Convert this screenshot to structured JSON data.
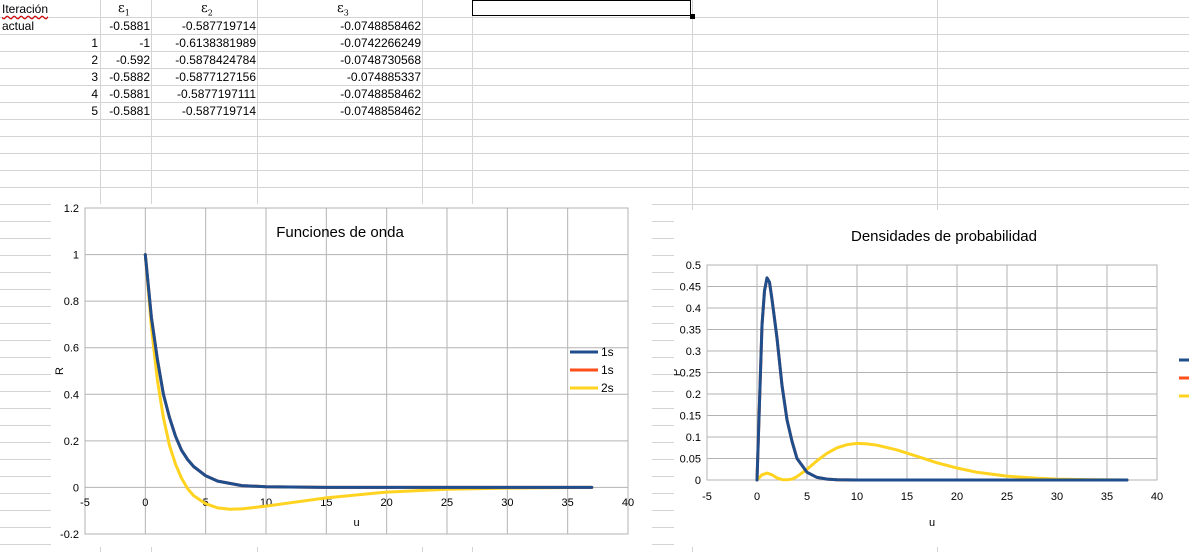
{
  "sheet": {
    "header_label_1": "Iteración",
    "header_label_2": "actual",
    "col_headers": [
      {
        "sym": "ε",
        "sub": "1"
      },
      {
        "sym": "ε",
        "sub": "2"
      },
      {
        "sym": "ε",
        "sub": "3"
      }
    ],
    "initial_row": [
      "-0.5881",
      "-0.587719714",
      "-0.0748858462"
    ],
    "rows": [
      {
        "iter": "1",
        "e1": "-1",
        "e2": "-0.6138381989",
        "e3": "-0.0742266249"
      },
      {
        "iter": "2",
        "e1": "-0.592",
        "e2": "-0.5878424784",
        "e3": "-0.0748730568"
      },
      {
        "iter": "3",
        "e1": "-0.5882",
        "e2": "-0.5877127156",
        "e3": "-0.074885337"
      },
      {
        "iter": "4",
        "e1": "-0.5881",
        "e2": "-0.5877197111",
        "e3": "-0.0748858462"
      },
      {
        "iter": "5",
        "e1": "-0.5881",
        "e2": "-0.587719714",
        "e3": "-0.0748858462"
      }
    ]
  },
  "chart_data": [
    {
      "type": "line",
      "title": "Funciones de onda",
      "xlabel": "u",
      "ylabel": "R",
      "xlim": [
        -5,
        40
      ],
      "ylim": [
        -0.2,
        1.2
      ],
      "xticks": [
        "-5",
        "0",
        "5",
        "10",
        "15",
        "20",
        "25",
        "30",
        "35",
        "40"
      ],
      "yticks": [
        "-0.2",
        "0",
        "0.2",
        "0.4",
        "0.6",
        "0.8",
        "1",
        "1.2"
      ],
      "grid": true,
      "legend": "right",
      "series": [
        {
          "name": "1s",
          "color": "#1f4e8c",
          "x": [
            0,
            0.5,
            1,
            1.5,
            2,
            2.5,
            3,
            3.5,
            4,
            5,
            6,
            8,
            10,
            15,
            20,
            25,
            30,
            37
          ],
          "y": [
            1,
            0.73,
            0.55,
            0.4,
            0.3,
            0.22,
            0.16,
            0.12,
            0.09,
            0.05,
            0.027,
            0.008,
            0.003,
            0.0003,
            0,
            0,
            0,
            0
          ]
        },
        {
          "name": "1s",
          "color": "#ff4f1a",
          "x": [
            0,
            0.5,
            1,
            1.5,
            2,
            2.5,
            3,
            3.5,
            4,
            5,
            6,
            8,
            10,
            15,
            20,
            25,
            30,
            37
          ],
          "y": [
            1,
            0.73,
            0.55,
            0.4,
            0.3,
            0.22,
            0.16,
            0.12,
            0.09,
            0.05,
            0.027,
            0.008,
            0.003,
            0.0003,
            0,
            0,
            0,
            0
          ]
        },
        {
          "name": "2s",
          "color": "#ffd320",
          "x": [
            0,
            0.5,
            1,
            1.5,
            2,
            2.5,
            3,
            3.5,
            4,
            5,
            6,
            7,
            8,
            10,
            12,
            15,
            20,
            25,
            30,
            37
          ],
          "y": [
            1,
            0.69,
            0.46,
            0.3,
            0.18,
            0.1,
            0.04,
            -0.005,
            -0.035,
            -0.07,
            -0.088,
            -0.094,
            -0.092,
            -0.08,
            -0.066,
            -0.045,
            -0.02,
            -0.008,
            -0.003,
            0
          ]
        }
      ]
    },
    {
      "type": "line",
      "title": "Densidades de probabilidad",
      "xlabel": "u",
      "ylabel": "P",
      "xlim": [
        -5,
        40
      ],
      "ylim": [
        0,
        0.5
      ],
      "xticks": [
        "-5",
        "0",
        "5",
        "10",
        "15",
        "20",
        "25",
        "30",
        "35",
        "40"
      ],
      "yticks": [
        "0",
        "0.05",
        "0.1",
        "0.15",
        "0.2",
        "0.25",
        "0.3",
        "0.35",
        "0.4",
        "0.45",
        "0.5"
      ],
      "grid": true,
      "legend": "right",
      "series": [
        {
          "color": "#1f4e8c",
          "x": [
            0,
            0.25,
            0.5,
            0.75,
            1,
            1.25,
            1.5,
            2,
            2.5,
            3,
            3.5,
            4,
            5,
            6,
            7,
            8,
            10,
            15,
            20,
            30,
            37
          ],
          "y": [
            0,
            0.18,
            0.36,
            0.44,
            0.47,
            0.46,
            0.42,
            0.33,
            0.22,
            0.14,
            0.09,
            0.05,
            0.018,
            0.006,
            0.002,
            0.0005,
            0,
            0,
            0,
            0,
            0
          ]
        },
        {
          "color": "#ff4f1a",
          "x": [
            0,
            0.25,
            0.5,
            0.75,
            1,
            1.25,
            1.5,
            2,
            2.5,
            3,
            3.5,
            4,
            5,
            6,
            7,
            8,
            10,
            15,
            20,
            30,
            37
          ],
          "y": [
            0,
            0.18,
            0.36,
            0.44,
            0.47,
            0.46,
            0.42,
            0.33,
            0.22,
            0.14,
            0.09,
            0.05,
            0.018,
            0.006,
            0.002,
            0.0005,
            0,
            0,
            0,
            0,
            0
          ]
        },
        {
          "color": "#ffd320",
          "x": [
            0,
            0.5,
            1,
            1.5,
            2,
            2.5,
            3,
            3.5,
            4,
            5,
            6,
            7,
            8,
            9,
            10,
            11,
            12,
            14,
            16,
            18,
            20,
            22,
            25,
            28,
            30,
            33,
            37
          ],
          "y": [
            0,
            0.012,
            0.016,
            0.012,
            0.005,
            0.001,
            0.0005,
            0.002,
            0.008,
            0.025,
            0.045,
            0.062,
            0.075,
            0.082,
            0.085,
            0.084,
            0.081,
            0.07,
            0.055,
            0.04,
            0.028,
            0.018,
            0.009,
            0.004,
            0.002,
            0.001,
            0
          ]
        }
      ]
    }
  ]
}
